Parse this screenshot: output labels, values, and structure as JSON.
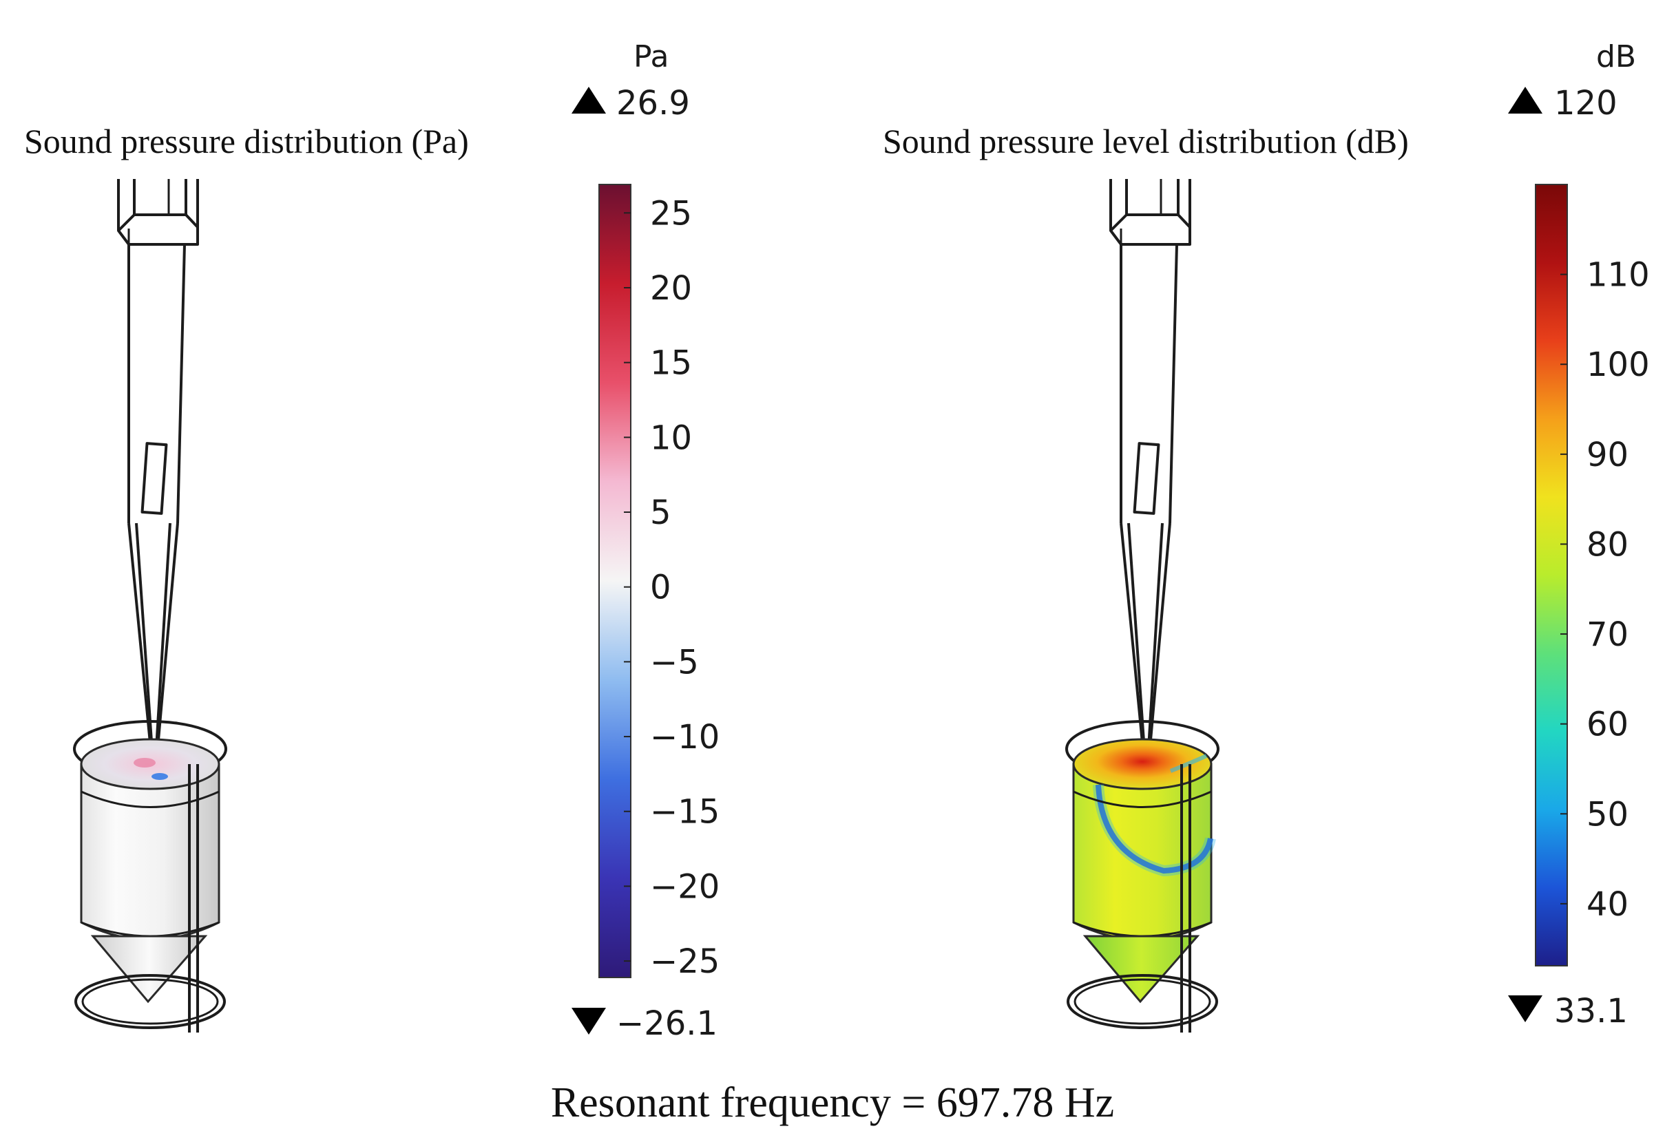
{
  "panels": {
    "left": {
      "title": "Sound pressure distribution (Pa)",
      "colorbar": {
        "unit": "Pa",
        "max_label": "26.9",
        "min_label": "−26.1",
        "max": 26.9,
        "min": -26.1,
        "ticks": [
          {
            "value": 25,
            "label": "25"
          },
          {
            "value": 20,
            "label": "20"
          },
          {
            "value": 15,
            "label": "15"
          },
          {
            "value": 10,
            "label": "10"
          },
          {
            "value": 5,
            "label": "5"
          },
          {
            "value": 0,
            "label": "0"
          },
          {
            "value": -5,
            "label": "−5"
          },
          {
            "value": -10,
            "label": "−10"
          },
          {
            "value": -15,
            "label": "−15"
          },
          {
            "value": -20,
            "label": "−20"
          },
          {
            "value": -25,
            "label": "−25"
          }
        ],
        "colormap": [
          "#2e1a78",
          "#3a34b5",
          "#3e6fe0",
          "#8fbcf0",
          "#f5f5f5",
          "#f4b9d2",
          "#e8506a",
          "#c71d2e",
          "#6b1030"
        ]
      }
    },
    "right": {
      "title": "Sound pressure level distribution (dB)",
      "colorbar": {
        "unit": "dB",
        "max_label": "120",
        "min_label": "33.1",
        "max": 120,
        "min": 33.1,
        "ticks": [
          {
            "value": 110,
            "label": "110"
          },
          {
            "value": 100,
            "label": "100"
          },
          {
            "value": 90,
            "label": "90"
          },
          {
            "value": 80,
            "label": "80"
          },
          {
            "value": 70,
            "label": "70"
          },
          {
            "value": 60,
            "label": "60"
          },
          {
            "value": 50,
            "label": "50"
          },
          {
            "value": 40,
            "label": "40"
          }
        ],
        "colormap": [
          "#1d1f8a",
          "#1c55d8",
          "#1aa8e8",
          "#22d6c2",
          "#5ee07a",
          "#b9ec2c",
          "#f0e21e",
          "#f5a01a",
          "#e8401a",
          "#b01212",
          "#7a0808"
        ]
      }
    }
  },
  "caption": "Resonant frequency = 697.78 Hz"
}
